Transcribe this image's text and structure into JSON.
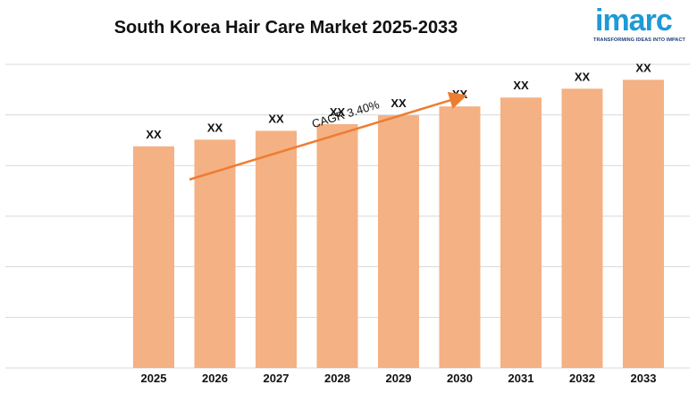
{
  "logo": {
    "word": "imarc",
    "tagline": "TRANSFORMING IDEAS INTO IMPACT"
  },
  "chart_data": {
    "type": "bar",
    "title": "South Korea Hair Care Market 2025-2033",
    "categories": [
      "2025",
      "2026",
      "2027",
      "2028",
      "2029",
      "2030",
      "2031",
      "2032",
      "2033"
    ],
    "values": [
      1.0,
      1.03,
      1.07,
      1.1,
      1.14,
      1.18,
      1.22,
      1.26,
      1.3
    ],
    "data_labels": [
      "XX",
      "XX",
      "XX",
      "XX",
      "XX",
      "XX",
      "XX",
      "XX",
      "XX"
    ],
    "ylim": [
      0,
      1.37
    ],
    "y_axis_visible": false,
    "grid": true,
    "bar_color": "#f4b183",
    "annotation": {
      "text": "CAGR 3.40%",
      "arrow_color": "#ed7d31"
    }
  }
}
